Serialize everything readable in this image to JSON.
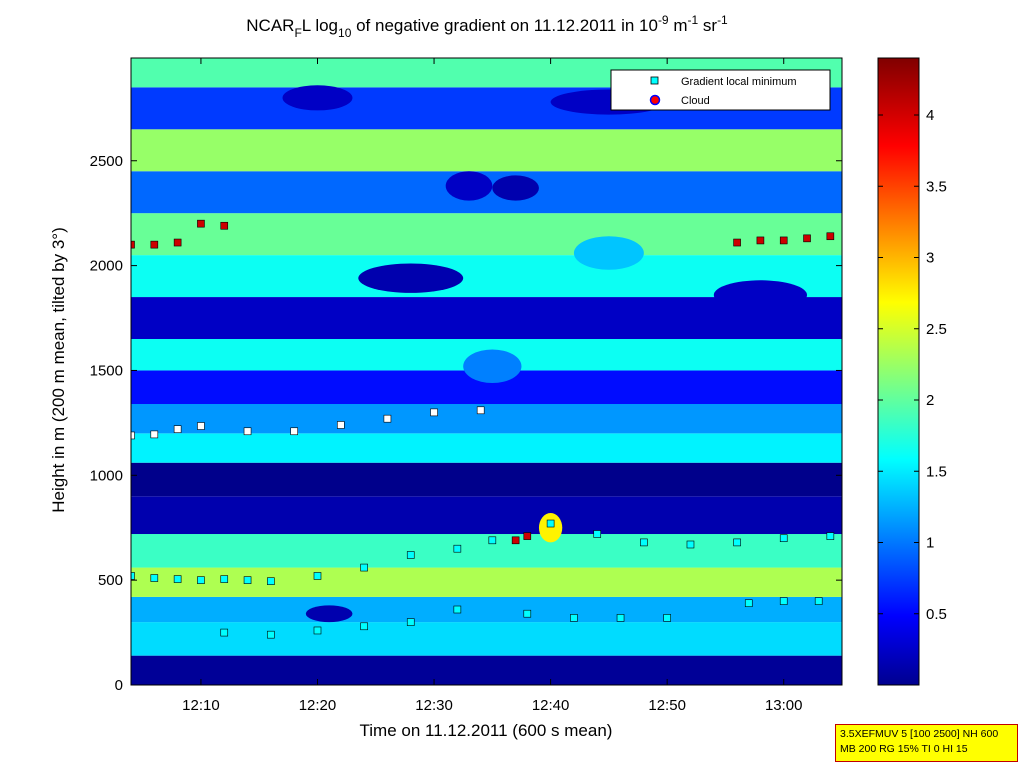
{
  "title": {
    "prefix": "NCAR",
    "sub1": "F",
    "mid": "L log",
    "sub2": "10",
    "main": " of negative gradient on 11.12.2011 in 10",
    "exp1": "-9",
    "unit1": " m",
    "exp2": "-1",
    "unit2": " sr",
    "exp3": "-1"
  },
  "chart_data": {
    "type": "heatmap",
    "xlabel": "Time on 11.12.2011 (600 s mean)",
    "ylabel": "Height in m (200 m mean, tilted by 3°)",
    "xlim": [
      "12:04",
      "13:05"
    ],
    "ylim": [
      0,
      2990
    ],
    "x_ticks": [
      "12:10",
      "12:20",
      "12:30",
      "12:40",
      "12:50",
      "13:00"
    ],
    "y_ticks": [
      0,
      500,
      1000,
      1500,
      2000,
      2500
    ],
    "colorbar": {
      "min": 0,
      "max": 4.4,
      "ticks": [
        0.5,
        1,
        1.5,
        2,
        2.5,
        3,
        3.5,
        4
      ],
      "colormap": "jet"
    },
    "legend": {
      "position": "top-right",
      "entries": [
        {
          "label": "Gradient local minimum",
          "marker": "square",
          "color": "#00ffff"
        },
        {
          "label": "Cloud",
          "marker": "circle",
          "color": "#ff0000",
          "edge": "#0000ff"
        }
      ]
    },
    "bands": [
      {
        "y0": 0,
        "y1": 140,
        "level": 0.1
      },
      {
        "y0": 140,
        "y1": 300,
        "level": 1.5
      },
      {
        "y0": 300,
        "y1": 420,
        "level": 1.3
      },
      {
        "y0": 420,
        "y1": 560,
        "level": 2.4
      },
      {
        "y0": 560,
        "y1": 720,
        "level": 1.9
      },
      {
        "y0": 720,
        "y1": 900,
        "level": 0.2
      },
      {
        "y0": 900,
        "y1": 1060,
        "level": 0.05
      },
      {
        "y0": 1060,
        "y1": 1200,
        "level": 1.6
      },
      {
        "y0": 1200,
        "y1": 1340,
        "level": 1.2
      },
      {
        "y0": 1340,
        "y1": 1500,
        "level": 0.6
      },
      {
        "y0": 1500,
        "y1": 1650,
        "level": 1.7
      },
      {
        "y0": 1650,
        "y1": 1850,
        "level": 0.3
      },
      {
        "y0": 1850,
        "y1": 2050,
        "level": 1.7
      },
      {
        "y0": 2050,
        "y1": 2250,
        "level": 2.1
      },
      {
        "y0": 2250,
        "y1": 2450,
        "level": 1.0
      },
      {
        "y0": 2450,
        "y1": 2650,
        "level": 2.3
      },
      {
        "y0": 2650,
        "y1": 2850,
        "level": 0.8
      },
      {
        "y0": 2850,
        "y1": 2990,
        "level": 2.0
      }
    ],
    "blobs": [
      {
        "x": "12:28",
        "y": 1940,
        "w": 9,
        "h": 140,
        "level": 0.2
      },
      {
        "x": "12:45",
        "y": 2060,
        "w": 6,
        "h": 160,
        "level": 1.4
      },
      {
        "x": "12:20",
        "y": 2800,
        "w": 6,
        "h": 120,
        "level": 0.3
      },
      {
        "x": "12:45",
        "y": 2780,
        "w": 10,
        "h": 120,
        "level": 0.3
      },
      {
        "x": "12:33",
        "y": 2380,
        "w": 4,
        "h": 140,
        "level": 0.3
      },
      {
        "x": "12:37",
        "y": 2370,
        "w": 4,
        "h": 120,
        "level": 0.2
      },
      {
        "x": "12:58",
        "y": 1860,
        "w": 8,
        "h": 140,
        "level": 0.3
      },
      {
        "x": "12:21",
        "y": 340,
        "w": 4,
        "h": 80,
        "level": 0.2
      },
      {
        "x": "12:35",
        "y": 1520,
        "w": 5,
        "h": 160,
        "level": 1.1
      },
      {
        "x": "12:40",
        "y": 750,
        "w": 2,
        "h": 140,
        "level": 2.8
      }
    ],
    "series": [
      {
        "name": "Gradient local minimum",
        "color": "#00ffff",
        "x": [
          "12:04",
          "12:06",
          "12:08",
          "12:10",
          "12:12",
          "12:14",
          "12:16",
          "12:20",
          "12:24",
          "12:28",
          "12:32",
          "12:35",
          "12:40",
          "12:44",
          "12:48",
          "12:52",
          "12:56",
          "13:00",
          "13:04"
        ],
        "y": [
          520,
          510,
          505,
          500,
          505,
          500,
          495,
          520,
          560,
          620,
          650,
          690,
          770,
          720,
          680,
          670,
          680,
          700,
          710
        ]
      },
      {
        "name": "Gradient local minimum",
        "color": "#00ffff",
        "x": [
          "12:12",
          "12:16",
          "12:20",
          "12:24",
          "12:28",
          "12:32"
        ],
        "y": [
          250,
          240,
          260,
          280,
          300,
          360
        ]
      },
      {
        "name": "Gradient local minimum",
        "color": "#00ffff",
        "x": [
          "12:38",
          "12:42",
          "12:46",
          "12:50"
        ],
        "y": [
          340,
          320,
          320,
          320
        ]
      },
      {
        "name": "Gradient local minimum",
        "color": "#00ffff",
        "x": [
          "12:57",
          "13:00",
          "13:03"
        ],
        "y": [
          390,
          400,
          400
        ]
      },
      {
        "name": "Gradient local minimum",
        "color": "#ffffff",
        "x": [
          "12:04",
          "12:06",
          "12:08",
          "12:10",
          "12:14",
          "12:18",
          "12:22",
          "12:26",
          "12:30",
          "12:34"
        ],
        "y": [
          1190,
          1195,
          1220,
          1235,
          1210,
          1210,
          1240,
          1270,
          1300,
          1310
        ]
      },
      {
        "name": "Cloud",
        "color": "#cc0000",
        "x": [
          "12:04",
          "12:06",
          "12:08",
          "12:10",
          "12:12"
        ],
        "y": [
          2100,
          2100,
          2110,
          2200,
          2190
        ]
      },
      {
        "name": "Cloud",
        "color": "#cc0000",
        "x": [
          "12:56",
          "12:58",
          "13:00",
          "13:02",
          "13:04"
        ],
        "y": [
          2110,
          2120,
          2120,
          2130,
          2140
        ]
      },
      {
        "name": "Cloud",
        "color": "#cc0000",
        "x": [
          "12:37",
          "12:38"
        ],
        "y": [
          690,
          710
        ]
      }
    ]
  },
  "info_box": {
    "line1": "3.5XEFMUV 5 [100 2500] NH 600",
    "line2": "MB 200 RG 15% TI 0 HI 15"
  }
}
